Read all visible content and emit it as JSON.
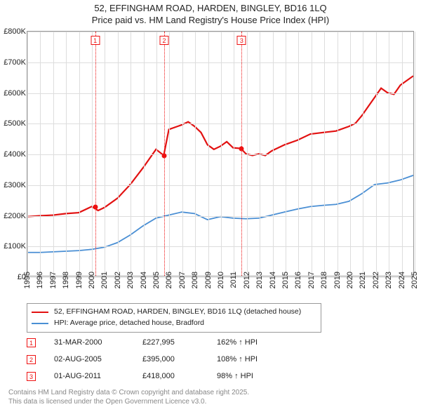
{
  "title": {
    "line1": "52, EFFINGHAM ROAD, HARDEN, BINGLEY, BD16 1LQ",
    "line2": "Price paid vs. HM Land Registry's House Price Index (HPI)"
  },
  "chart": {
    "type": "line",
    "x_range": [
      1995,
      2025
    ],
    "y_range": [
      0,
      800000
    ],
    "y_ticks": [
      0,
      100000,
      200000,
      300000,
      400000,
      500000,
      600000,
      700000,
      800000
    ],
    "y_tick_labels": [
      "£0",
      "£100K",
      "£200K",
      "£300K",
      "£400K",
      "£500K",
      "£600K",
      "£700K",
      "£800K"
    ],
    "x_ticks": [
      1995,
      1996,
      1997,
      1998,
      1999,
      2000,
      2001,
      2002,
      2003,
      2004,
      2005,
      2006,
      2007,
      2008,
      2009,
      2010,
      2011,
      2012,
      2013,
      2014,
      2015,
      2016,
      2017,
      2018,
      2019,
      2020,
      2021,
      2022,
      2023,
      2024,
      2025
    ],
    "grid_color": "#dddddd",
    "background_color": "#ffffff",
    "series": [
      {
        "name": "price_paid",
        "label": "52, EFFINGHAM ROAD, HARDEN, BINGLEY, BD16 1LQ (detached house)",
        "color": "#e21111",
        "line_width": 2.2,
        "points": [
          [
            1995,
            195000
          ],
          [
            1996,
            198000
          ],
          [
            1997,
            200000
          ],
          [
            1998,
            205000
          ],
          [
            1999,
            208000
          ],
          [
            2000,
            228000
          ],
          [
            2000.5,
            215000
          ],
          [
            2001,
            225000
          ],
          [
            2002,
            255000
          ],
          [
            2003,
            300000
          ],
          [
            2004,
            355000
          ],
          [
            2005,
            415000
          ],
          [
            2005.6,
            395000
          ],
          [
            2006,
            480000
          ],
          [
            2007,
            495000
          ],
          [
            2007.5,
            505000
          ],
          [
            2008,
            490000
          ],
          [
            2008.5,
            470000
          ],
          [
            2009,
            430000
          ],
          [
            2009.5,
            415000
          ],
          [
            2010,
            425000
          ],
          [
            2010.5,
            440000
          ],
          [
            2011,
            420000
          ],
          [
            2011.6,
            418000
          ],
          [
            2012,
            400000
          ],
          [
            2012.5,
            395000
          ],
          [
            2013,
            400000
          ],
          [
            2013.5,
            395000
          ],
          [
            2014,
            410000
          ],
          [
            2015,
            430000
          ],
          [
            2016,
            445000
          ],
          [
            2017,
            465000
          ],
          [
            2018,
            470000
          ],
          [
            2019,
            475000
          ],
          [
            2020,
            490000
          ],
          [
            2020.5,
            500000
          ],
          [
            2021,
            525000
          ],
          [
            2021.5,
            555000
          ],
          [
            2022,
            585000
          ],
          [
            2022.5,
            615000
          ],
          [
            2023,
            600000
          ],
          [
            2023.5,
            595000
          ],
          [
            2024,
            625000
          ],
          [
            2024.5,
            640000
          ],
          [
            2025,
            655000
          ]
        ]
      },
      {
        "name": "hpi",
        "label": "HPI: Average price, detached house, Bradford",
        "color": "#4a8fd4",
        "line_width": 1.8,
        "points": [
          [
            1995,
            78000
          ],
          [
            1996,
            78000
          ],
          [
            1997,
            80000
          ],
          [
            1998,
            82000
          ],
          [
            1999,
            84000
          ],
          [
            2000,
            88000
          ],
          [
            2001,
            95000
          ],
          [
            2002,
            110000
          ],
          [
            2003,
            135000
          ],
          [
            2004,
            165000
          ],
          [
            2005,
            190000
          ],
          [
            2006,
            200000
          ],
          [
            2007,
            210000
          ],
          [
            2008,
            205000
          ],
          [
            2009,
            185000
          ],
          [
            2010,
            195000
          ],
          [
            2011,
            190000
          ],
          [
            2012,
            188000
          ],
          [
            2013,
            190000
          ],
          [
            2014,
            200000
          ],
          [
            2015,
            210000
          ],
          [
            2016,
            220000
          ],
          [
            2017,
            228000
          ],
          [
            2018,
            232000
          ],
          [
            2019,
            235000
          ],
          [
            2020,
            245000
          ],
          [
            2021,
            270000
          ],
          [
            2022,
            300000
          ],
          [
            2023,
            305000
          ],
          [
            2024,
            315000
          ],
          [
            2025,
            330000
          ]
        ]
      }
    ],
    "markers": [
      {
        "n": "1",
        "x": 2000.25,
        "y": 227995
      },
      {
        "n": "2",
        "x": 2005.6,
        "y": 395000
      },
      {
        "n": "3",
        "x": 2011.6,
        "y": 418000
      }
    ]
  },
  "legend": {
    "item1": "52, EFFINGHAM ROAD, HARDEN, BINGLEY, BD16 1LQ (detached house)",
    "item2": "HPI: Average price, detached house, Bradford"
  },
  "sales": [
    {
      "n": "1",
      "date": "31-MAR-2000",
      "price": "£227,995",
      "pct": "162% ↑ HPI"
    },
    {
      "n": "2",
      "date": "02-AUG-2005",
      "price": "£395,000",
      "pct": "108% ↑ HPI"
    },
    {
      "n": "3",
      "date": "01-AUG-2011",
      "price": "£418,000",
      "pct": "98% ↑ HPI"
    }
  ],
  "license": {
    "line1": "Contains HM Land Registry data © Crown copyright and database right 2025.",
    "line2": "This data is licensed under the Open Government Licence v3.0."
  }
}
